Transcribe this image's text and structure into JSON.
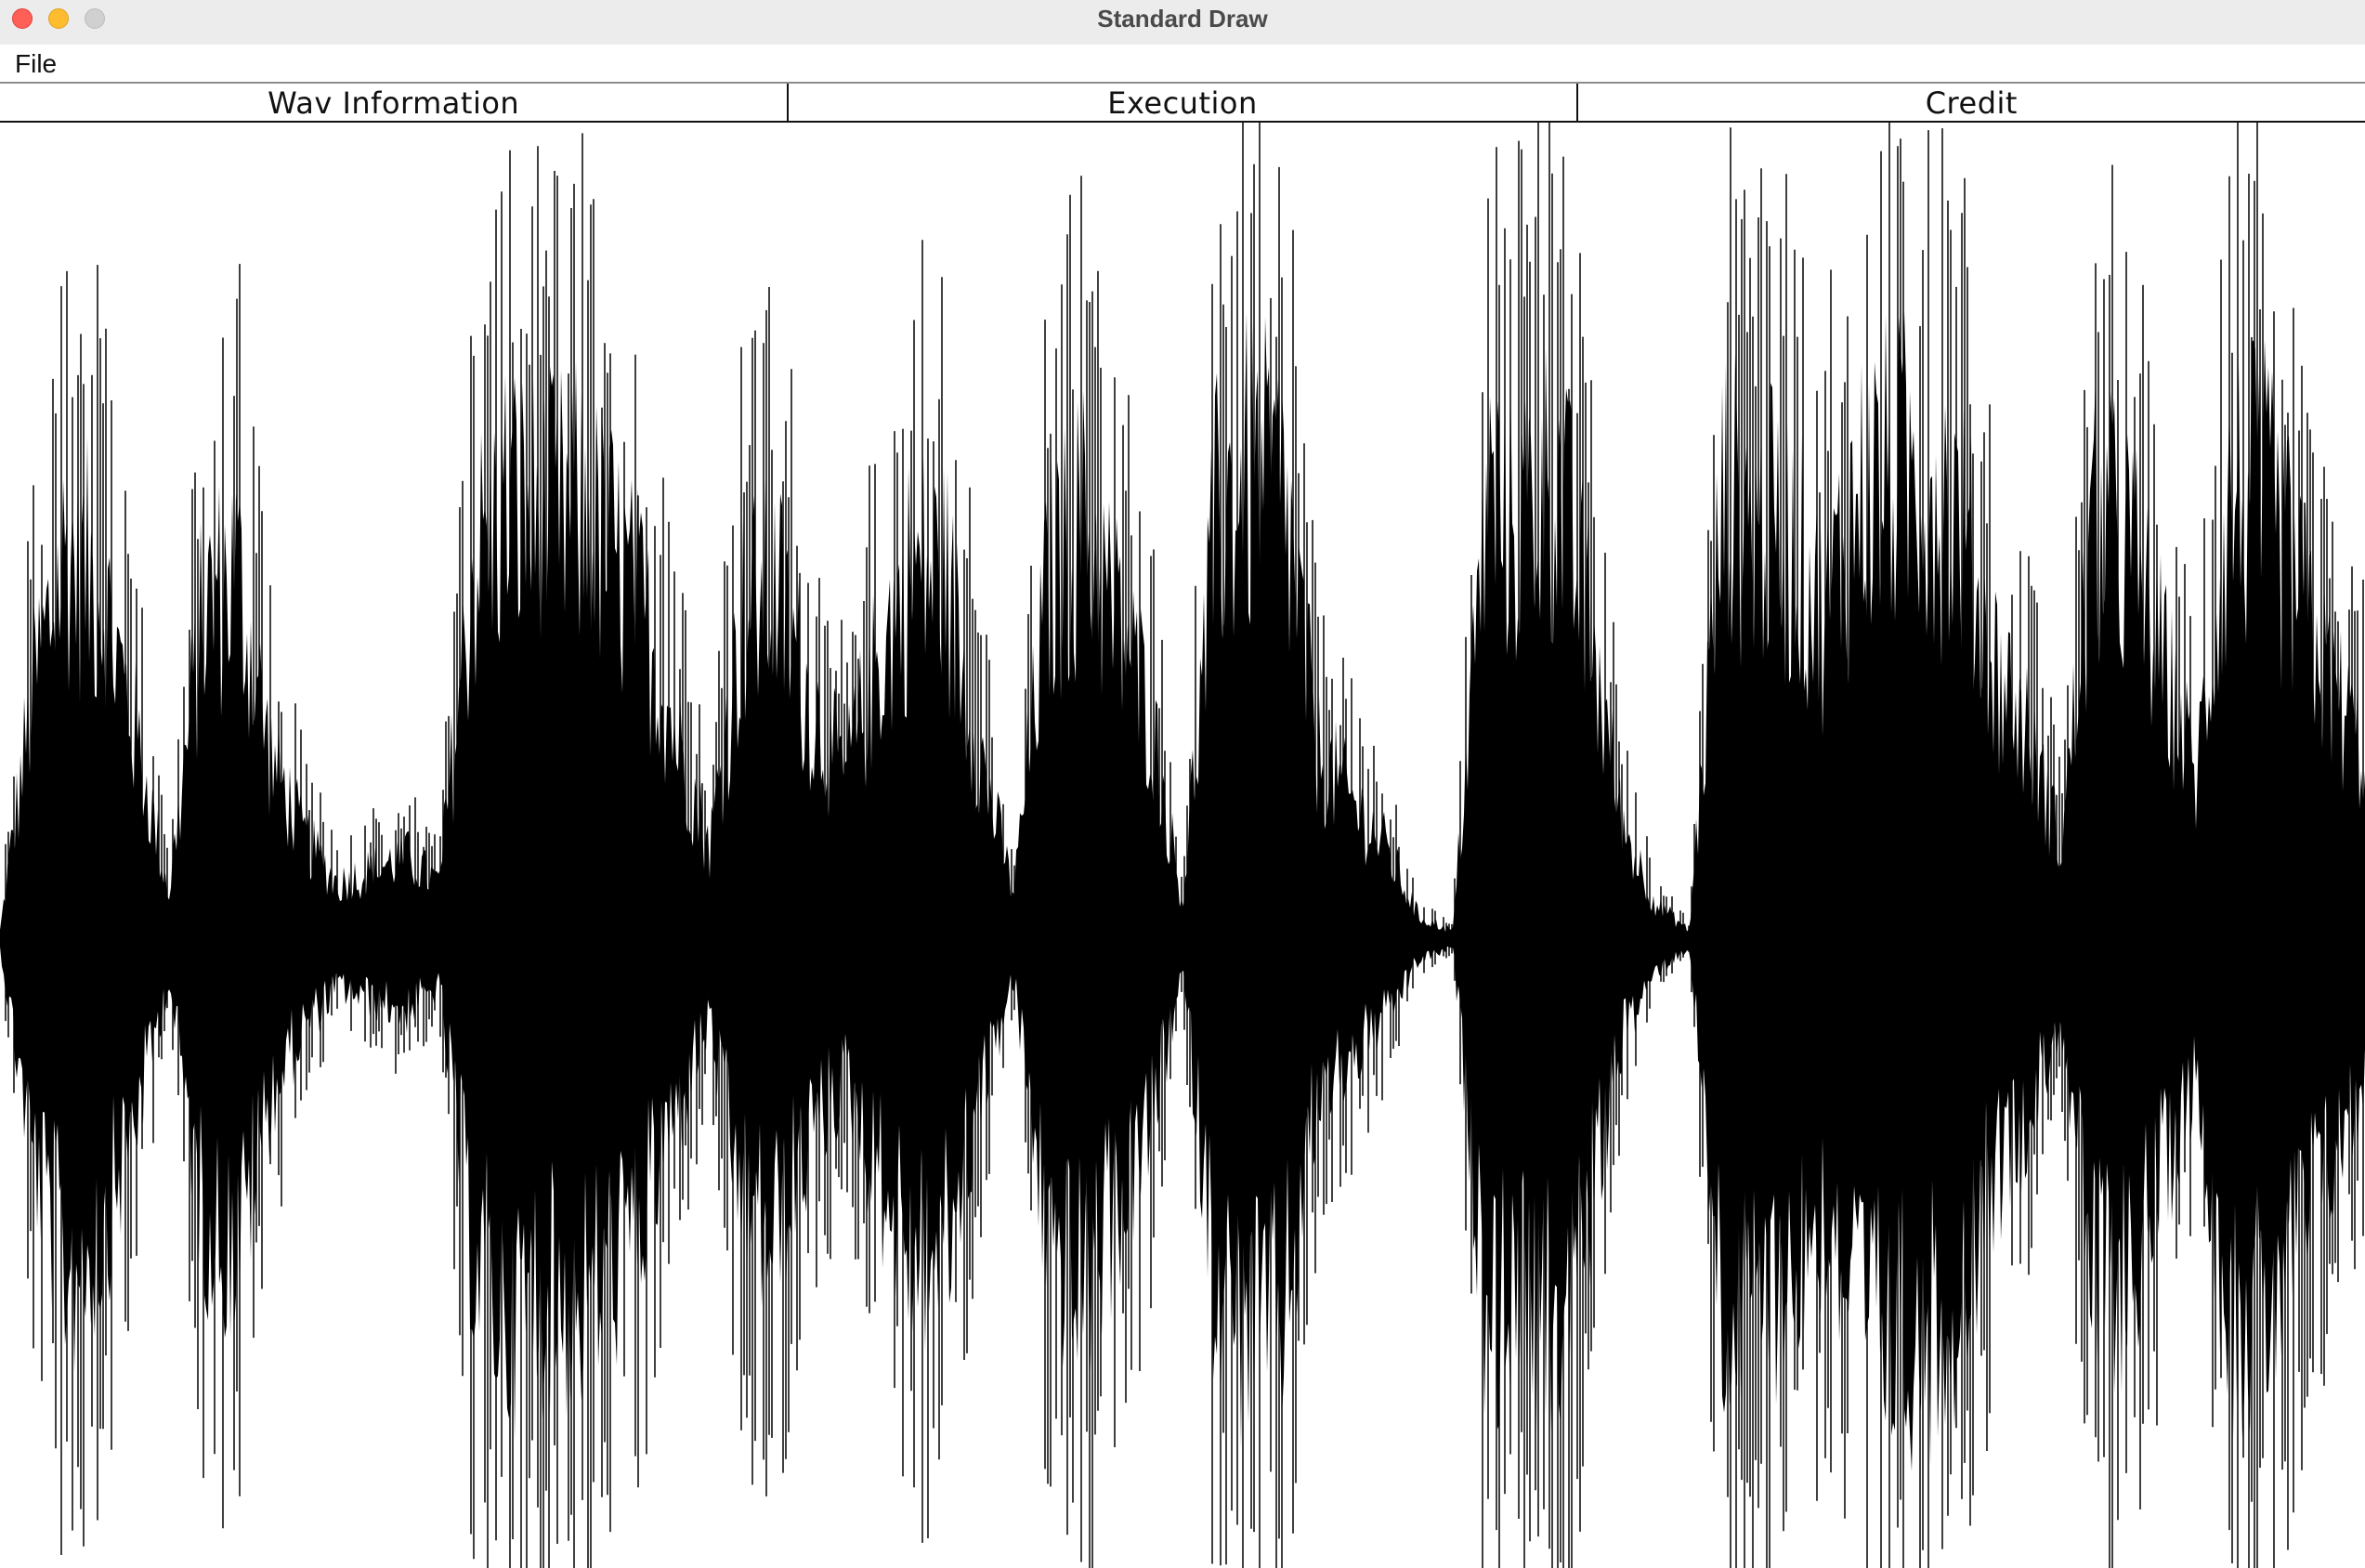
{
  "window": {
    "title": "Standard Draw"
  },
  "menu": {
    "items": [
      {
        "label": "File"
      }
    ]
  },
  "tabs": [
    {
      "label": "Wav Information"
    },
    {
      "label": "Execution"
    },
    {
      "label": "Credit"
    }
  ],
  "waveform": {
    "color": "#000000",
    "background": "#ffffff",
    "envelope": [
      0.02,
      0.55,
      0.85,
      0.75,
      0.45,
      0.1,
      0.7,
      0.8,
      0.4,
      0.22,
      0.12,
      0.15,
      0.18,
      0.12,
      0.8,
      0.95,
      0.9,
      0.92,
      0.85,
      0.7,
      0.45,
      0.2,
      0.7,
      0.75,
      0.5,
      0.35,
      0.6,
      0.8,
      0.78,
      0.4,
      0.1,
      0.75,
      0.9,
      0.7,
      0.5,
      0.08,
      0.9,
      1.0,
      0.95,
      0.4,
      0.3,
      0.2,
      0.05,
      0.02,
      0.95,
      0.9,
      1.0,
      0.7,
      0.25,
      0.08,
      0.02,
      0.95,
      0.9,
      0.85,
      0.7,
      0.95,
      1.0,
      1.0,
      0.9,
      0.6,
      0.45,
      0.2,
      0.9,
      0.85,
      0.6,
      0.35,
      0.95,
      0.95,
      0.75,
      0.55,
      0.4
    ]
  }
}
